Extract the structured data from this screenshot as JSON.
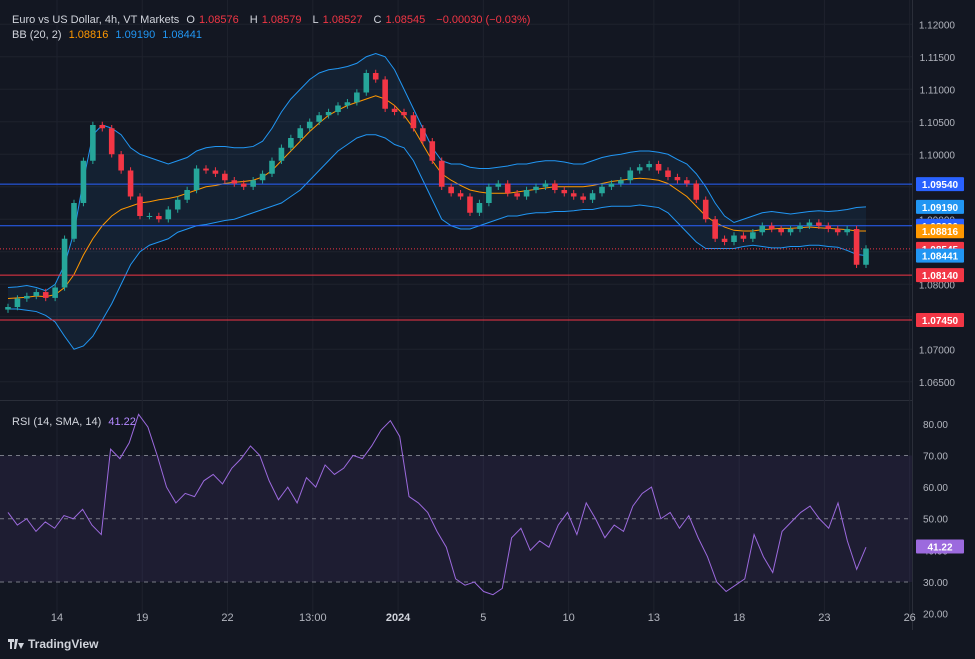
{
  "header": {
    "symbol": "Euro vs US Dollar, 4h, VT Markets",
    "open_label": "O",
    "open": "1.08576",
    "high_label": "H",
    "high": "1.08579",
    "low_label": "L",
    "low": "1.08527",
    "close_label": "C",
    "close": "1.08545",
    "change": "−0.00030 (−0.03%)",
    "bb_label": "BB (20, 2)",
    "bb_basis": "1.08816",
    "bb_upper": "1.09190",
    "bb_lower": "1.08441",
    "rsi_label": "RSI (14, SMA, 14)",
    "rsi_value": "41.22"
  },
  "brand": "TradingView",
  "colors": {
    "bg": "#131722",
    "up": "#26a69a",
    "down": "#f23645",
    "grid": "#1e222d",
    "bb": "#2196f3",
    "basis": "#ff9800",
    "rsi": "#9c6ade",
    "text": "#b2b5be"
  },
  "chart_data": [
    {
      "type": "candlestick",
      "title": "Euro vs US Dollar, 4h, VT Markets",
      "ylim": [
        1.0625,
        1.1225
      ],
      "y_ticks": [
        "1.12000",
        "1.11500",
        "1.11000",
        "1.10500",
        "1.10000",
        "1.09500",
        "1.09000",
        "1.08500",
        "1.08000",
        "1.07500",
        "1.07000",
        "1.06500"
      ],
      "x_ticks": [
        "14",
        "19",
        "22",
        "13:00",
        "2024",
        "5",
        "10",
        "13",
        "18",
        "23",
        "26"
      ],
      "close_series": [
        1.0765,
        1.0778,
        1.0782,
        1.0788,
        1.0779,
        1.0795,
        1.087,
        1.0925,
        1.099,
        1.1045,
        1.104,
        1.1,
        1.0975,
        1.0935,
        1.0905,
        1.0905,
        1.09,
        1.0915,
        1.093,
        1.0945,
        1.0978,
        1.0975,
        1.097,
        1.096,
        1.0955,
        1.095,
        1.096,
        1.097,
        1.099,
        1.101,
        1.1025,
        1.104,
        1.105,
        1.106,
        1.1065,
        1.1075,
        1.108,
        1.1095,
        1.1125,
        1.1115,
        1.107,
        1.1065,
        1.106,
        1.104,
        1.102,
        1.099,
        1.095,
        1.094,
        1.0935,
        1.091,
        1.0925,
        1.095,
        1.0955,
        1.094,
        1.0935,
        1.0945,
        1.095,
        1.0955,
        1.0945,
        1.094,
        1.0935,
        1.093,
        1.094,
        1.095,
        1.0955,
        1.096,
        1.0975,
        1.098,
        1.0985,
        1.0975,
        1.0965,
        1.096,
        1.0955,
        1.093,
        1.09,
        1.087,
        1.0865,
        1.0875,
        1.087,
        1.088,
        1.089,
        1.0885,
        1.088,
        1.0885,
        1.089,
        1.0895,
        1.089,
        1.0885,
        1.088,
        1.0885,
        1.083,
        1.0855
      ],
      "bb_upper": [
        1.0795,
        1.0796,
        1.0798,
        1.0795,
        1.079,
        1.08,
        1.083,
        1.088,
        1.096,
        1.103,
        1.1045,
        1.104,
        1.103,
        1.101,
        1.1,
        1.0995,
        1.099,
        1.0985,
        1.099,
        1.0995,
        1.1005,
        1.101,
        1.1012,
        1.1012,
        1.101,
        1.101,
        1.1012,
        1.102,
        1.104,
        1.1065,
        1.1085,
        1.11,
        1.1115,
        1.1125,
        1.113,
        1.1132,
        1.1135,
        1.114,
        1.115,
        1.1155,
        1.115,
        1.113,
        1.11,
        1.107,
        1.104,
        1.101,
        1.099,
        1.0985,
        1.0985,
        1.098,
        1.0978,
        1.0978,
        1.098,
        1.0982,
        1.0985,
        1.0985,
        1.0988,
        1.099,
        1.099,
        1.0988,
        1.0985,
        1.0985,
        1.099,
        1.0995,
        1.0998,
        1.1,
        1.1003,
        1.1005,
        1.1005,
        1.1003,
        1.1,
        1.0992,
        1.0985,
        1.097,
        1.095,
        1.0925,
        1.0905,
        1.0895,
        1.09,
        1.0905,
        1.091,
        1.0912,
        1.091,
        1.0908,
        1.091,
        1.0912,
        1.0913,
        1.0912,
        1.0913,
        1.0915,
        1.0918,
        1.0919
      ],
      "bb_basis": [
        1.0778,
        1.0779,
        1.078,
        1.0782,
        1.0781,
        1.0784,
        1.0795,
        1.0815,
        1.0845,
        1.087,
        1.089,
        1.0905,
        1.0915,
        1.092,
        1.0925,
        1.0927,
        1.093,
        1.0932,
        1.0935,
        1.094,
        1.0945,
        1.095,
        1.0952,
        1.0955,
        1.0957,
        1.0958,
        1.096,
        1.0965,
        1.0975,
        1.099,
        1.1005,
        1.102,
        1.1035,
        1.1048,
        1.106,
        1.1068,
        1.1075,
        1.108,
        1.1085,
        1.109,
        1.1085,
        1.1075,
        1.106,
        1.104,
        1.1015,
        1.099,
        1.097,
        1.096,
        1.0952,
        1.0945,
        1.0942,
        1.094,
        1.094,
        1.094,
        1.0942,
        1.0944,
        1.0946,
        1.0948,
        1.095,
        1.095,
        1.095,
        1.095,
        1.0952,
        1.0955,
        1.0958,
        1.096,
        1.0962,
        1.0963,
        1.0962,
        1.096,
        1.0955,
        1.0945,
        1.0935,
        1.092,
        1.0905,
        1.0895,
        1.0888,
        1.0883,
        1.0882,
        1.0882,
        1.0884,
        1.0885,
        1.0886,
        1.0886,
        1.0887,
        1.0888,
        1.0887,
        1.0886,
        1.0885,
        1.0884,
        1.0882,
        1.0882
      ],
      "bb_lower": [
        1.0762,
        1.0762,
        1.076,
        1.0758,
        1.0752,
        1.0742,
        1.072,
        1.07,
        1.0705,
        1.072,
        1.0745,
        1.077,
        1.08,
        1.083,
        1.085,
        1.086,
        1.0865,
        1.087,
        1.088,
        1.0885,
        1.089,
        1.0892,
        1.0895,
        1.0898,
        1.09,
        1.0905,
        1.091,
        1.0915,
        1.092,
        1.0925,
        1.0935,
        1.0945,
        1.096,
        1.0975,
        1.099,
        1.1005,
        1.1015,
        1.1025,
        1.103,
        1.103,
        1.1025,
        1.1015,
        1.101,
        1.099,
        1.096,
        1.093,
        1.09,
        1.089,
        1.0885,
        1.0885,
        1.089,
        1.0895,
        1.09,
        1.0905,
        1.0905,
        1.0908,
        1.091,
        1.091,
        1.0912,
        1.0912,
        1.0913,
        1.0915,
        1.0915,
        1.0918,
        1.092,
        1.092,
        1.092,
        1.0922,
        1.092,
        1.0918,
        1.091,
        1.0895,
        1.088,
        1.0865,
        1.0855,
        1.0855,
        1.0855,
        1.0855,
        1.0858,
        1.086,
        1.0858,
        1.0856,
        1.0856,
        1.0858,
        1.0858,
        1.086,
        1.086,
        1.0858,
        1.0857,
        1.0852,
        1.0846,
        1.0844
      ],
      "horizontal_lines": [
        {
          "value": 1.0954,
          "label": "1.09540",
          "color": "#2962ff"
        },
        {
          "value": 1.089,
          "label": "1.08900",
          "color": "#2962ff"
        },
        {
          "value": 1.0814,
          "label": "1.08140",
          "color": "#f23645"
        },
        {
          "value": 1.0745,
          "label": "1.07450",
          "color": "#f23645"
        }
      ],
      "price_tags": [
        {
          "value": 1.0919,
          "label": "1.09190",
          "color": "#2196f3"
        },
        {
          "value": 1.08816,
          "label": "1.08816",
          "color": "#ff9800"
        },
        {
          "value": 1.08545,
          "label": "1.08545",
          "color": "#f23645"
        },
        {
          "value": 1.08441,
          "label": "1.08441",
          "color": "#2196f3"
        }
      ]
    },
    {
      "type": "line",
      "title": "RSI (14, SMA, 14)",
      "ylim": [
        18,
        85
      ],
      "y_ticks": [
        "80.00",
        "70.00",
        "60.00",
        "50.00",
        "40.00",
        "30.00",
        "20.00"
      ],
      "bands": [
        30,
        50,
        70
      ],
      "last": 41.22,
      "values": [
        52,
        48,
        50,
        46,
        49,
        47,
        51,
        50,
        53,
        48,
        45,
        72,
        69,
        74,
        83,
        79,
        70,
        60,
        55,
        58,
        57,
        62,
        64,
        61,
        66,
        69,
        73,
        70,
        62,
        56,
        60,
        55,
        63,
        60,
        67,
        64,
        66,
        70,
        69,
        73,
        78,
        81,
        76,
        57,
        55,
        52,
        46,
        41,
        31,
        29,
        30,
        27,
        26,
        28,
        44,
        47,
        40,
        43,
        41,
        48,
        52,
        45,
        55,
        50,
        44,
        48,
        46,
        54,
        58,
        60,
        50,
        52,
        47,
        51,
        44,
        38,
        30,
        27,
        29,
        31,
        45,
        38,
        33,
        46,
        49,
        52,
        54,
        50,
        47,
        55,
        43,
        34,
        41
      ]
    }
  ]
}
